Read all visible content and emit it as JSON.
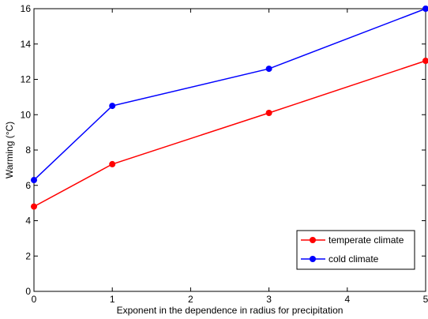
{
  "chart_data": {
    "type": "line",
    "title": "",
    "xlabel": "Exponent in the dependence in radius for precipitation",
    "ylabel": "Warming (°C)",
    "xlim": [
      0,
      5
    ],
    "ylim": [
      0,
      16
    ],
    "xticks": [
      0,
      1,
      2,
      3,
      4,
      5
    ],
    "yticks": [
      0,
      2,
      4,
      6,
      8,
      10,
      12,
      14,
      16
    ],
    "grid": false,
    "legend_position": "bottom-right",
    "series": [
      {
        "name": "temperate climate",
        "color": "#ff0000",
        "x": [
          0,
          1,
          3,
          5
        ],
        "y": [
          4.8,
          7.2,
          10.1,
          13.05
        ]
      },
      {
        "name": "cold climate",
        "color": "#0000ff",
        "x": [
          0,
          1,
          3,
          5
        ],
        "y": [
          6.3,
          10.5,
          12.6,
          16.0
        ]
      }
    ]
  }
}
